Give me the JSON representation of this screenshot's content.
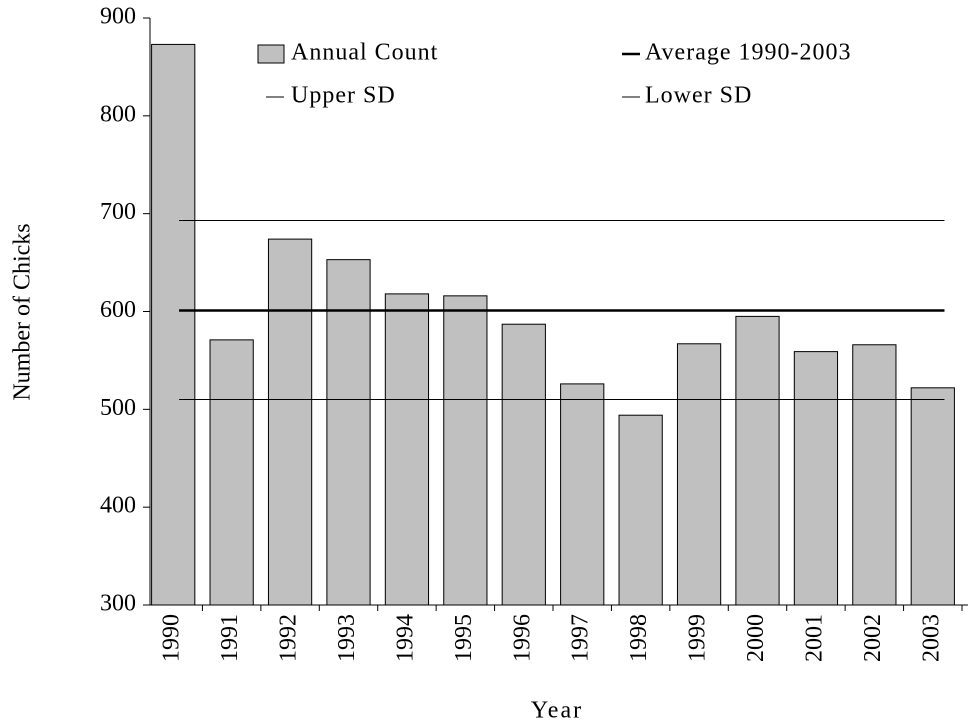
{
  "chart_data": {
    "type": "bar",
    "x_label": "Year",
    "y_label": "Number of Chicks",
    "categories": [
      "1990",
      "1991",
      "1992",
      "1993",
      "1994",
      "1995",
      "1996",
      "1997",
      "1998",
      "1999",
      "2000",
      "2001",
      "2002",
      "2003"
    ],
    "series": [
      {
        "name": "Annual Count",
        "color": "#c0c0c0",
        "values": [
          873,
          571,
          674,
          653,
          618,
          616,
          587,
          526,
          494,
          567,
          595,
          559,
          566,
          522
        ]
      }
    ],
    "reference_lines": [
      {
        "name": "Average 1990-2003",
        "value": 601,
        "color": "#000000",
        "width": 2.5
      },
      {
        "name": "Upper SD",
        "value": 693,
        "color": "#000000",
        "width": 1
      },
      {
        "name": "Lower SD",
        "value": 510,
        "color": "#000000",
        "width": 1
      }
    ],
    "ylim": [
      300,
      900
    ],
    "yticks": [
      300,
      400,
      500,
      600,
      700,
      800,
      900
    ],
    "grid": false
  }
}
